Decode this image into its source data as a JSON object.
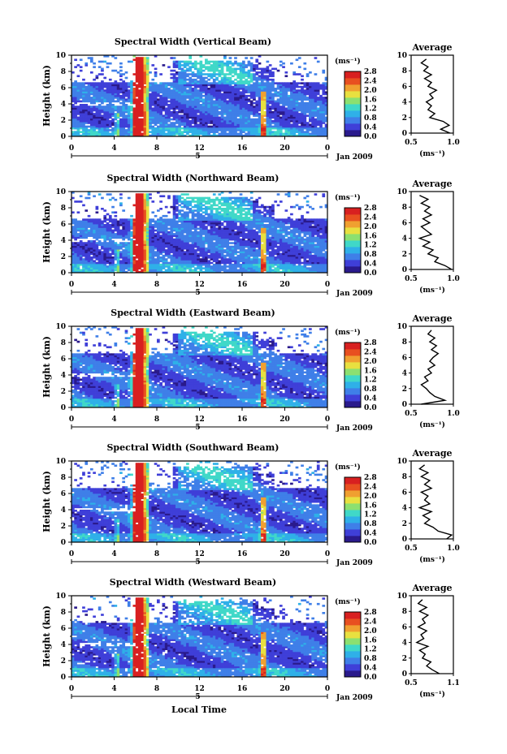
{
  "chart_data": {
    "type": "heatmap",
    "x_ticks": [
      "0",
      "4",
      "8",
      "12",
      "16",
      "20",
      "0"
    ],
    "y_ticks": [
      "0",
      "2",
      "4",
      "6",
      "8",
      "10"
    ],
    "ylabel": "Height (km)",
    "xlabel": "Local Time",
    "date_label": "Jan 2009",
    "day_label": "5",
    "xlim": [
      0,
      24
    ],
    "ylim": [
      0,
      10
    ],
    "colorbar": {
      "unit": "(ms⁻¹)",
      "ticks": [
        "2.8",
        "2.4",
        "2.0",
        "1.6",
        "1.2",
        "0.8",
        "0.4",
        "0.0"
      ],
      "range": [
        0,
        2.8
      ],
      "colors": [
        "#2a1a8c",
        "#3f3fd8",
        "#3f7fe8",
        "#2fb0e8",
        "#40d8c8",
        "#8ce070",
        "#e8e040",
        "#f0a030",
        "#e85020",
        "#d82020"
      ]
    },
    "panels": [
      {
        "title": "Spectral Width (Vertical Beam)",
        "avg_title": "Average",
        "avg_xticks": [
          "0.5",
          "1.0"
        ],
        "avg_xlim": [
          0.5,
          1.0
        ],
        "avg_xlabel": "(ms⁻¹)",
        "avg_heights": [
          0,
          0.5,
          1,
          1.5,
          2,
          2.5,
          3,
          3.5,
          4,
          4.5,
          5,
          5.5,
          6,
          6.5,
          7,
          7.5,
          8,
          8.5,
          9,
          9.5
        ],
        "avg_values": [
          0.96,
          0.85,
          0.95,
          0.88,
          0.72,
          0.78,
          0.7,
          0.74,
          0.68,
          0.76,
          0.72,
          0.8,
          0.7,
          0.74,
          0.66,
          0.74,
          0.65,
          0.7,
          0.62,
          0.68
        ]
      },
      {
        "title": "Spectral Width (Northward Beam)",
        "avg_title": "Average",
        "avg_xticks": [
          "0.5",
          "1.0"
        ],
        "avg_xlim": [
          0.5,
          1.0
        ],
        "avg_xlabel": "(ms⁻¹)",
        "avg_heights": [
          0,
          0.5,
          1,
          1.5,
          2,
          2.5,
          3,
          3.5,
          4,
          4.5,
          5,
          5.5,
          6,
          6.5,
          7,
          7.5,
          8,
          8.5,
          9,
          9.5
        ],
        "avg_values": [
          0.98,
          0.9,
          0.78,
          0.82,
          0.7,
          0.76,
          0.64,
          0.72,
          0.6,
          0.74,
          0.68,
          0.62,
          0.72,
          0.64,
          0.74,
          0.66,
          0.72,
          0.62,
          0.7,
          0.6
        ]
      },
      {
        "title": "Spectral Width (Eastward Beam)",
        "avg_title": "Average",
        "avg_xticks": [
          "0.5",
          "1.0"
        ],
        "avg_xlim": [
          0.5,
          1.0
        ],
        "avg_xlabel": "(ms⁻¹)",
        "avg_heights": [
          0,
          0.5,
          1,
          1.5,
          2,
          2.5,
          3,
          3.5,
          4,
          4.5,
          5,
          5.5,
          6,
          6.5,
          7,
          7.5,
          8,
          8.5,
          9,
          9.5
        ],
        "avg_values": [
          0.62,
          0.9,
          0.78,
          0.72,
          0.68,
          0.62,
          0.7,
          0.66,
          0.74,
          0.7,
          0.78,
          0.72,
          0.76,
          0.82,
          0.74,
          0.8,
          0.72,
          0.78,
          0.7,
          0.74
        ]
      },
      {
        "title": "Spectral Width (Southward Beam)",
        "avg_title": "Average",
        "avg_xticks": [
          "0.5",
          "1.0"
        ],
        "avg_xlim": [
          0.5,
          1.0
        ],
        "avg_xlabel": "(ms⁻¹)",
        "avg_heights": [
          0,
          0.5,
          1,
          1.5,
          2,
          2.5,
          3,
          3.5,
          4,
          4.5,
          5,
          5.5,
          6,
          6.5,
          7,
          7.5,
          8,
          8.5,
          9,
          9.5
        ],
        "avg_values": [
          0.92,
          0.98,
          0.82,
          0.76,
          0.66,
          0.72,
          0.64,
          0.74,
          0.6,
          0.72,
          0.66,
          0.7,
          0.62,
          0.74,
          0.66,
          0.72,
          0.62,
          0.7,
          0.6,
          0.66
        ]
      },
      {
        "title": "Spectral Width (Westward Beam)",
        "avg_title": "Average",
        "avg_xticks": [
          "0.5",
          "1.1"
        ],
        "avg_xlim": [
          0.5,
          1.1
        ],
        "avg_xlabel": "(ms⁻¹)",
        "avg_heights": [
          0,
          0.5,
          1,
          1.5,
          2,
          2.5,
          3,
          3.5,
          4,
          4.5,
          5,
          5.5,
          6,
          6.5,
          7,
          7.5,
          8,
          8.5,
          9,
          9.5
        ],
        "avg_values": [
          0.9,
          0.8,
          0.72,
          0.78,
          0.66,
          0.7,
          0.62,
          0.74,
          0.58,
          0.68,
          0.64,
          0.72,
          0.6,
          0.7,
          0.66,
          0.74,
          0.62,
          0.72,
          0.6,
          0.66
        ]
      }
    ]
  }
}
